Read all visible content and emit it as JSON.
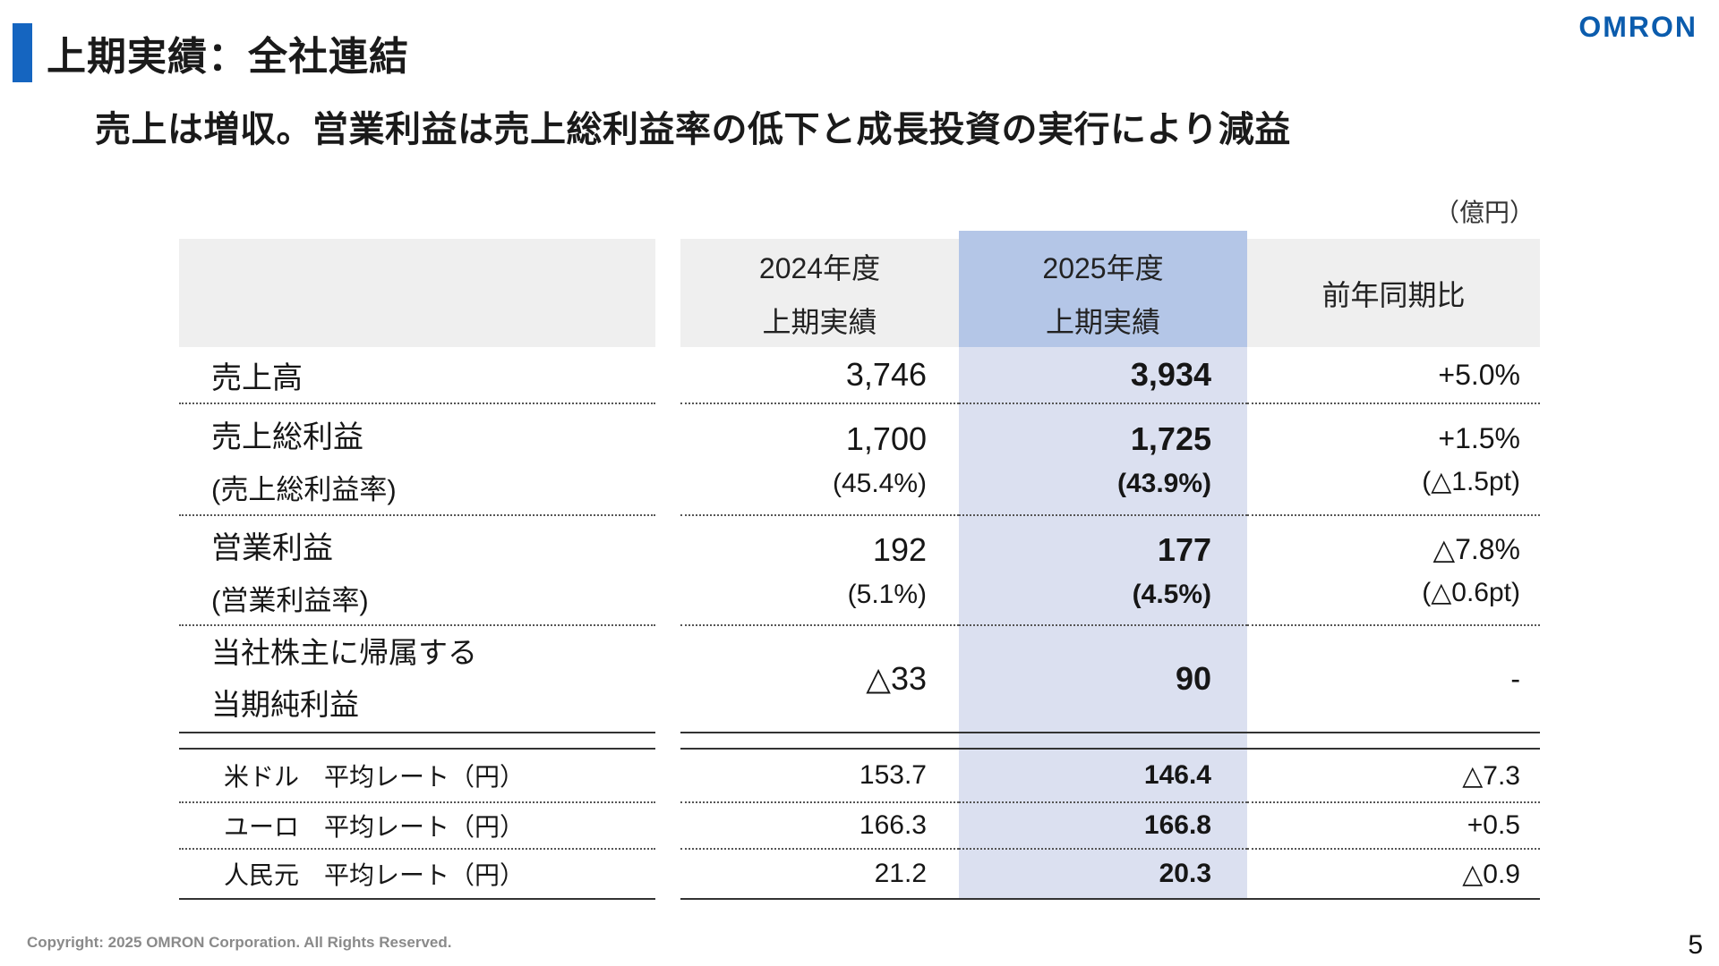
{
  "slide": {
    "logo_text": "OMRON",
    "title": "上期実績：全社連結",
    "subtitle": "売上は増収。営業利益は売上総利益率の低下と成長投資の実行により減益",
    "unit_label": "（億円）",
    "footer_copyright": "Copyright: 2025 OMRON Corporation. All Rights Reserved.",
    "page_number": "5"
  },
  "colors": {
    "accent_blue": "#1565c0",
    "logo_blue": "#0b5cad",
    "header_gray": "#efefef",
    "highlight_header_blue": "#b4c6e7",
    "highlight_column_blue": "#dbe0f0"
  },
  "table": {
    "header": {
      "col_2024": [
        "2024年度",
        "上期実績"
      ],
      "col_2025": [
        "2025年度",
        "上期実績"
      ],
      "col_yoy": "前年同期比"
    },
    "rows": {
      "sales": {
        "label": "売上高",
        "v2024": "3,746",
        "v2025": "3,934",
        "yoy": "+5.0%"
      },
      "gross_profit": {
        "label": "売上総利益",
        "sub_label": "(売上総利益率)",
        "v2024": "1,700",
        "v2024_sub": "(45.4%)",
        "v2025": "1,725",
        "v2025_sub": "(43.9%)",
        "yoy": "+1.5%",
        "yoy_sub": "(△1.5pt)"
      },
      "operating_income": {
        "label": "営業利益",
        "sub_label": "(営業利益率)",
        "v2024": "192",
        "v2024_sub": "(5.1%)",
        "v2025": "177",
        "v2025_sub": "(4.5%)",
        "yoy": "△7.8%",
        "yoy_sub": "(△0.6pt)"
      },
      "net_income": {
        "label_line1": "当社株主に帰属する",
        "label_line2": "当期純利益",
        "v2024": "△33",
        "v2025": "90",
        "yoy": "-"
      },
      "usd_rate": {
        "label": "米ドル　平均レート（円）",
        "v2024": "153.7",
        "v2025": "146.4",
        "yoy": "△7.3"
      },
      "eur_rate": {
        "label": "ユーロ　平均レート（円）",
        "v2024": "166.3",
        "v2025": "166.8",
        "yoy": "+0.5"
      },
      "cny_rate": {
        "label": "人民元　平均レート（円）",
        "v2024": "21.2",
        "v2025": "20.3",
        "yoy": "△0.9"
      }
    }
  }
}
